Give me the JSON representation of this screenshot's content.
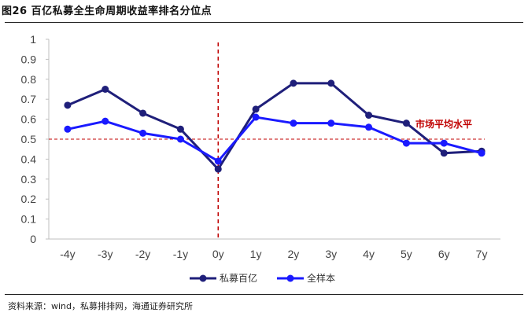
{
  "title": "图26 百亿私募全生命周期收益率排名分位点",
  "source": "资料来源：wind，私募排排网，海通证券研究所",
  "chart_data": {
    "type": "line",
    "categories": [
      "-4y",
      "-3y",
      "-2y",
      "-1y",
      "0y",
      "1y",
      "2y",
      "3y",
      "4y",
      "5y",
      "6y",
      "7y"
    ],
    "ylim": [
      0,
      1
    ],
    "yticks": [
      "0",
      "0.1",
      "0.2",
      "0.3",
      "0.4",
      "0.5",
      "0.6",
      "0.7",
      "0.8",
      "0.9",
      "1"
    ],
    "series": [
      {
        "name": "私募百亿",
        "color": "#1f1f7a",
        "values": [
          0.67,
          0.75,
          0.63,
          0.55,
          0.35,
          0.65,
          0.78,
          0.78,
          0.62,
          0.58,
          0.43,
          0.44
        ]
      },
      {
        "name": "全样本",
        "color": "#1a1aff",
        "values": [
          0.55,
          0.59,
          0.53,
          0.5,
          0.39,
          0.61,
          0.58,
          0.58,
          0.56,
          0.48,
          0.48,
          0.43
        ]
      }
    ],
    "reference_line": {
      "y": 0.5,
      "color": "#c00000",
      "label": "市场平均水平"
    },
    "vertical_line": {
      "x": "0y",
      "color": "#c00000"
    },
    "grid": false,
    "legend_position": "bottom"
  }
}
